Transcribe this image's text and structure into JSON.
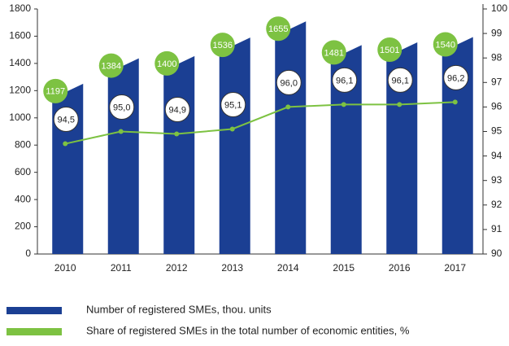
{
  "chart_data": {
    "type": "bar_line",
    "categories": [
      "2010",
      "2011",
      "2012",
      "2013",
      "2014",
      "2015",
      "2016",
      "2017"
    ],
    "series": [
      {
        "name": "Number of registered SMEs, thou. units",
        "color": "#1b3f93",
        "type": "bar",
        "values": [
          1197,
          1384,
          1400,
          1536,
          1655,
          1481,
          1501,
          1540
        ],
        "label_color": "#7dc242"
      },
      {
        "name": "Share of registered SMEs in the total number of economic entities, %",
        "color": "#7dc242",
        "type": "line",
        "axis": "y2",
        "values": [
          94.5,
          95.0,
          94.9,
          95.1,
          96.0,
          96.1,
          96.1,
          96.2
        ],
        "value_labels": [
          "94,5",
          "95,0",
          "94,9",
          "95,1",
          "96,0",
          "96,1",
          "96,1",
          "96,2"
        ]
      }
    ],
    "ylim": [
      0,
      1800
    ],
    "yticks": [
      0,
      200,
      400,
      600,
      800,
      1000,
      1200,
      1400,
      1600,
      1800
    ],
    "y2lim": [
      90,
      100
    ],
    "y2ticks": [
      90,
      91,
      92,
      93,
      94,
      95,
      96,
      97,
      98,
      99,
      100
    ],
    "grid": false
  }
}
